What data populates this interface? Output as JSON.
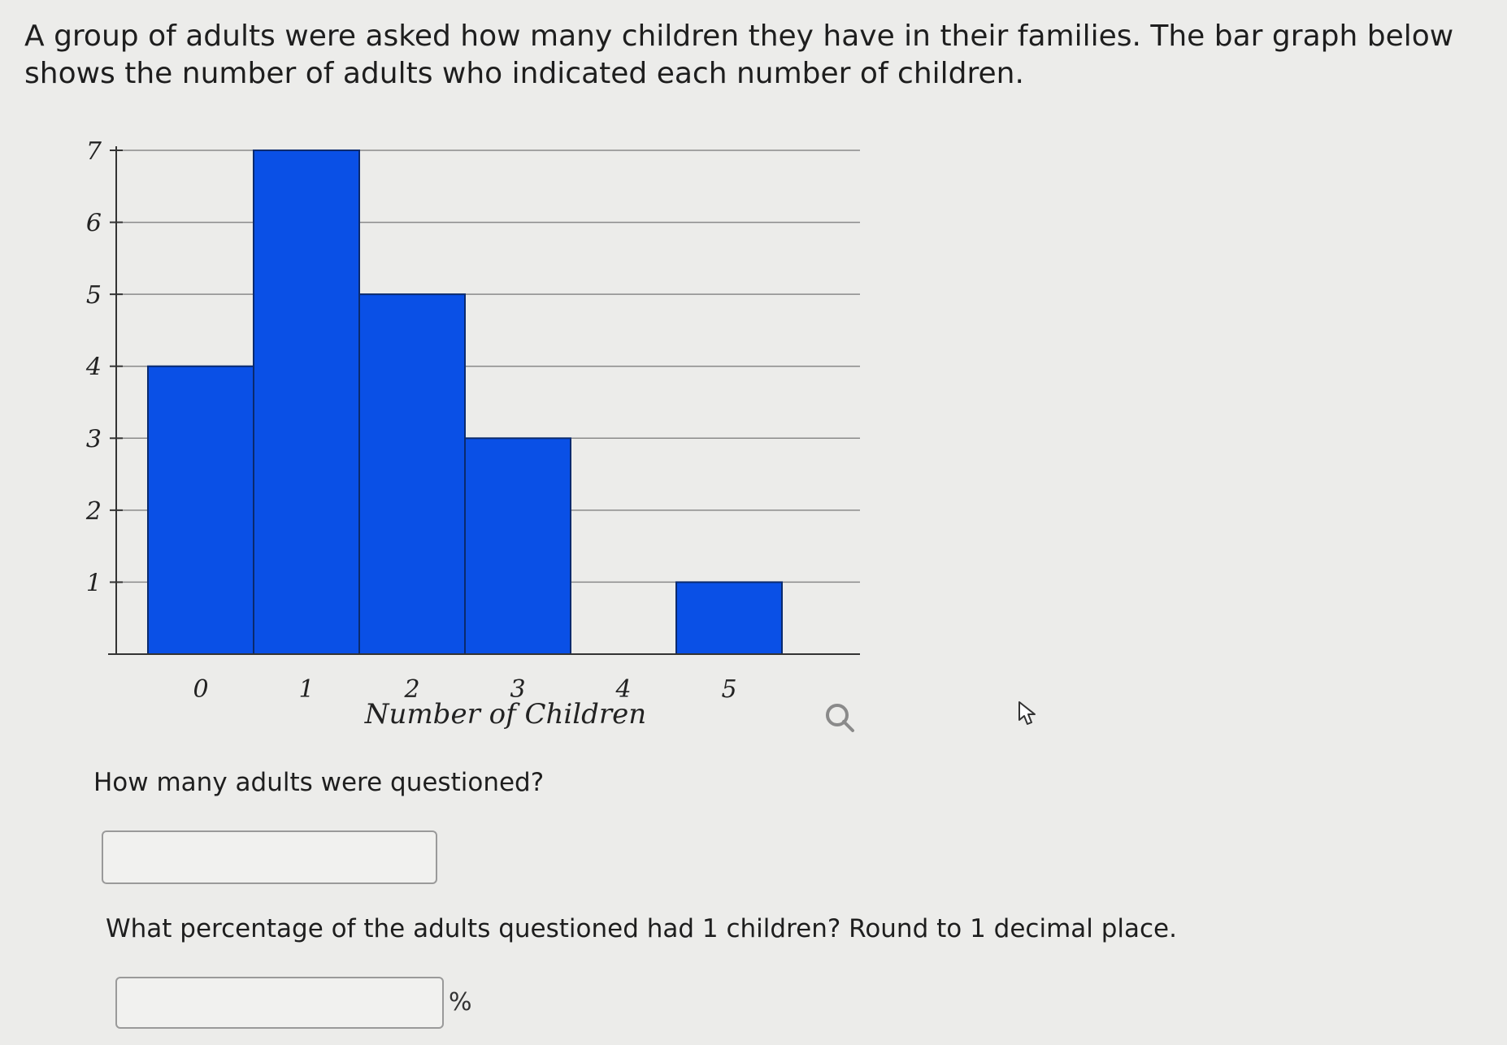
{
  "intro": "A group of adults were asked how many children they have in their families. The bar graph below shows the number of adults who indicated each number of children.",
  "chart_data": {
    "type": "bar",
    "categories": [
      "0",
      "1",
      "2",
      "3",
      "4",
      "5"
    ],
    "values": [
      4,
      7,
      5,
      3,
      0,
      1
    ],
    "xlabel": "Number of Children",
    "ylabel": "",
    "ylim": [
      0,
      7
    ],
    "yticks": [
      "1",
      "2",
      "3",
      "4",
      "5",
      "6",
      "7"
    ],
    "grid": true,
    "bar_color": "#0a50e6"
  },
  "questions": [
    {
      "text": "How many adults were questioned?",
      "value": "",
      "unit": ""
    },
    {
      "text": "What percentage of the adults questioned had 1 children? Round to 1 decimal place.",
      "value": "",
      "unit": "%"
    }
  ],
  "icons": {
    "zoom": "magnifier-icon",
    "cursor": "hand-pointer-icon"
  }
}
